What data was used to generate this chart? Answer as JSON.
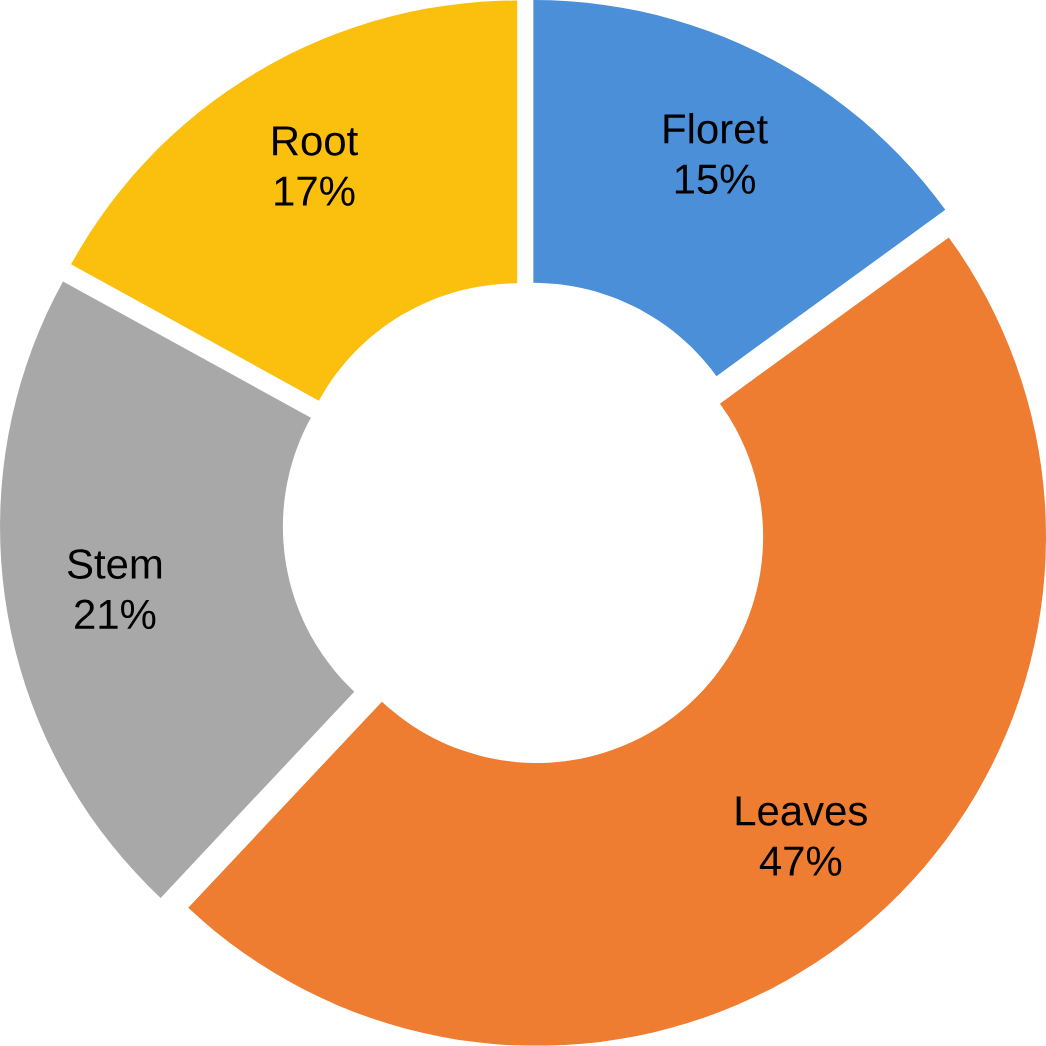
{
  "chart_data": {
    "type": "donut",
    "categories": [
      "Floret",
      "Leaves",
      "Stem",
      "Root"
    ],
    "values": [
      15,
      47,
      21,
      17
    ],
    "value_labels": [
      "15%",
      "47%",
      "21%",
      "17%"
    ],
    "colors": [
      "#4a8fd8",
      "#ee7c31",
      "#a8a8a8",
      "#fbbf0e"
    ]
  }
}
